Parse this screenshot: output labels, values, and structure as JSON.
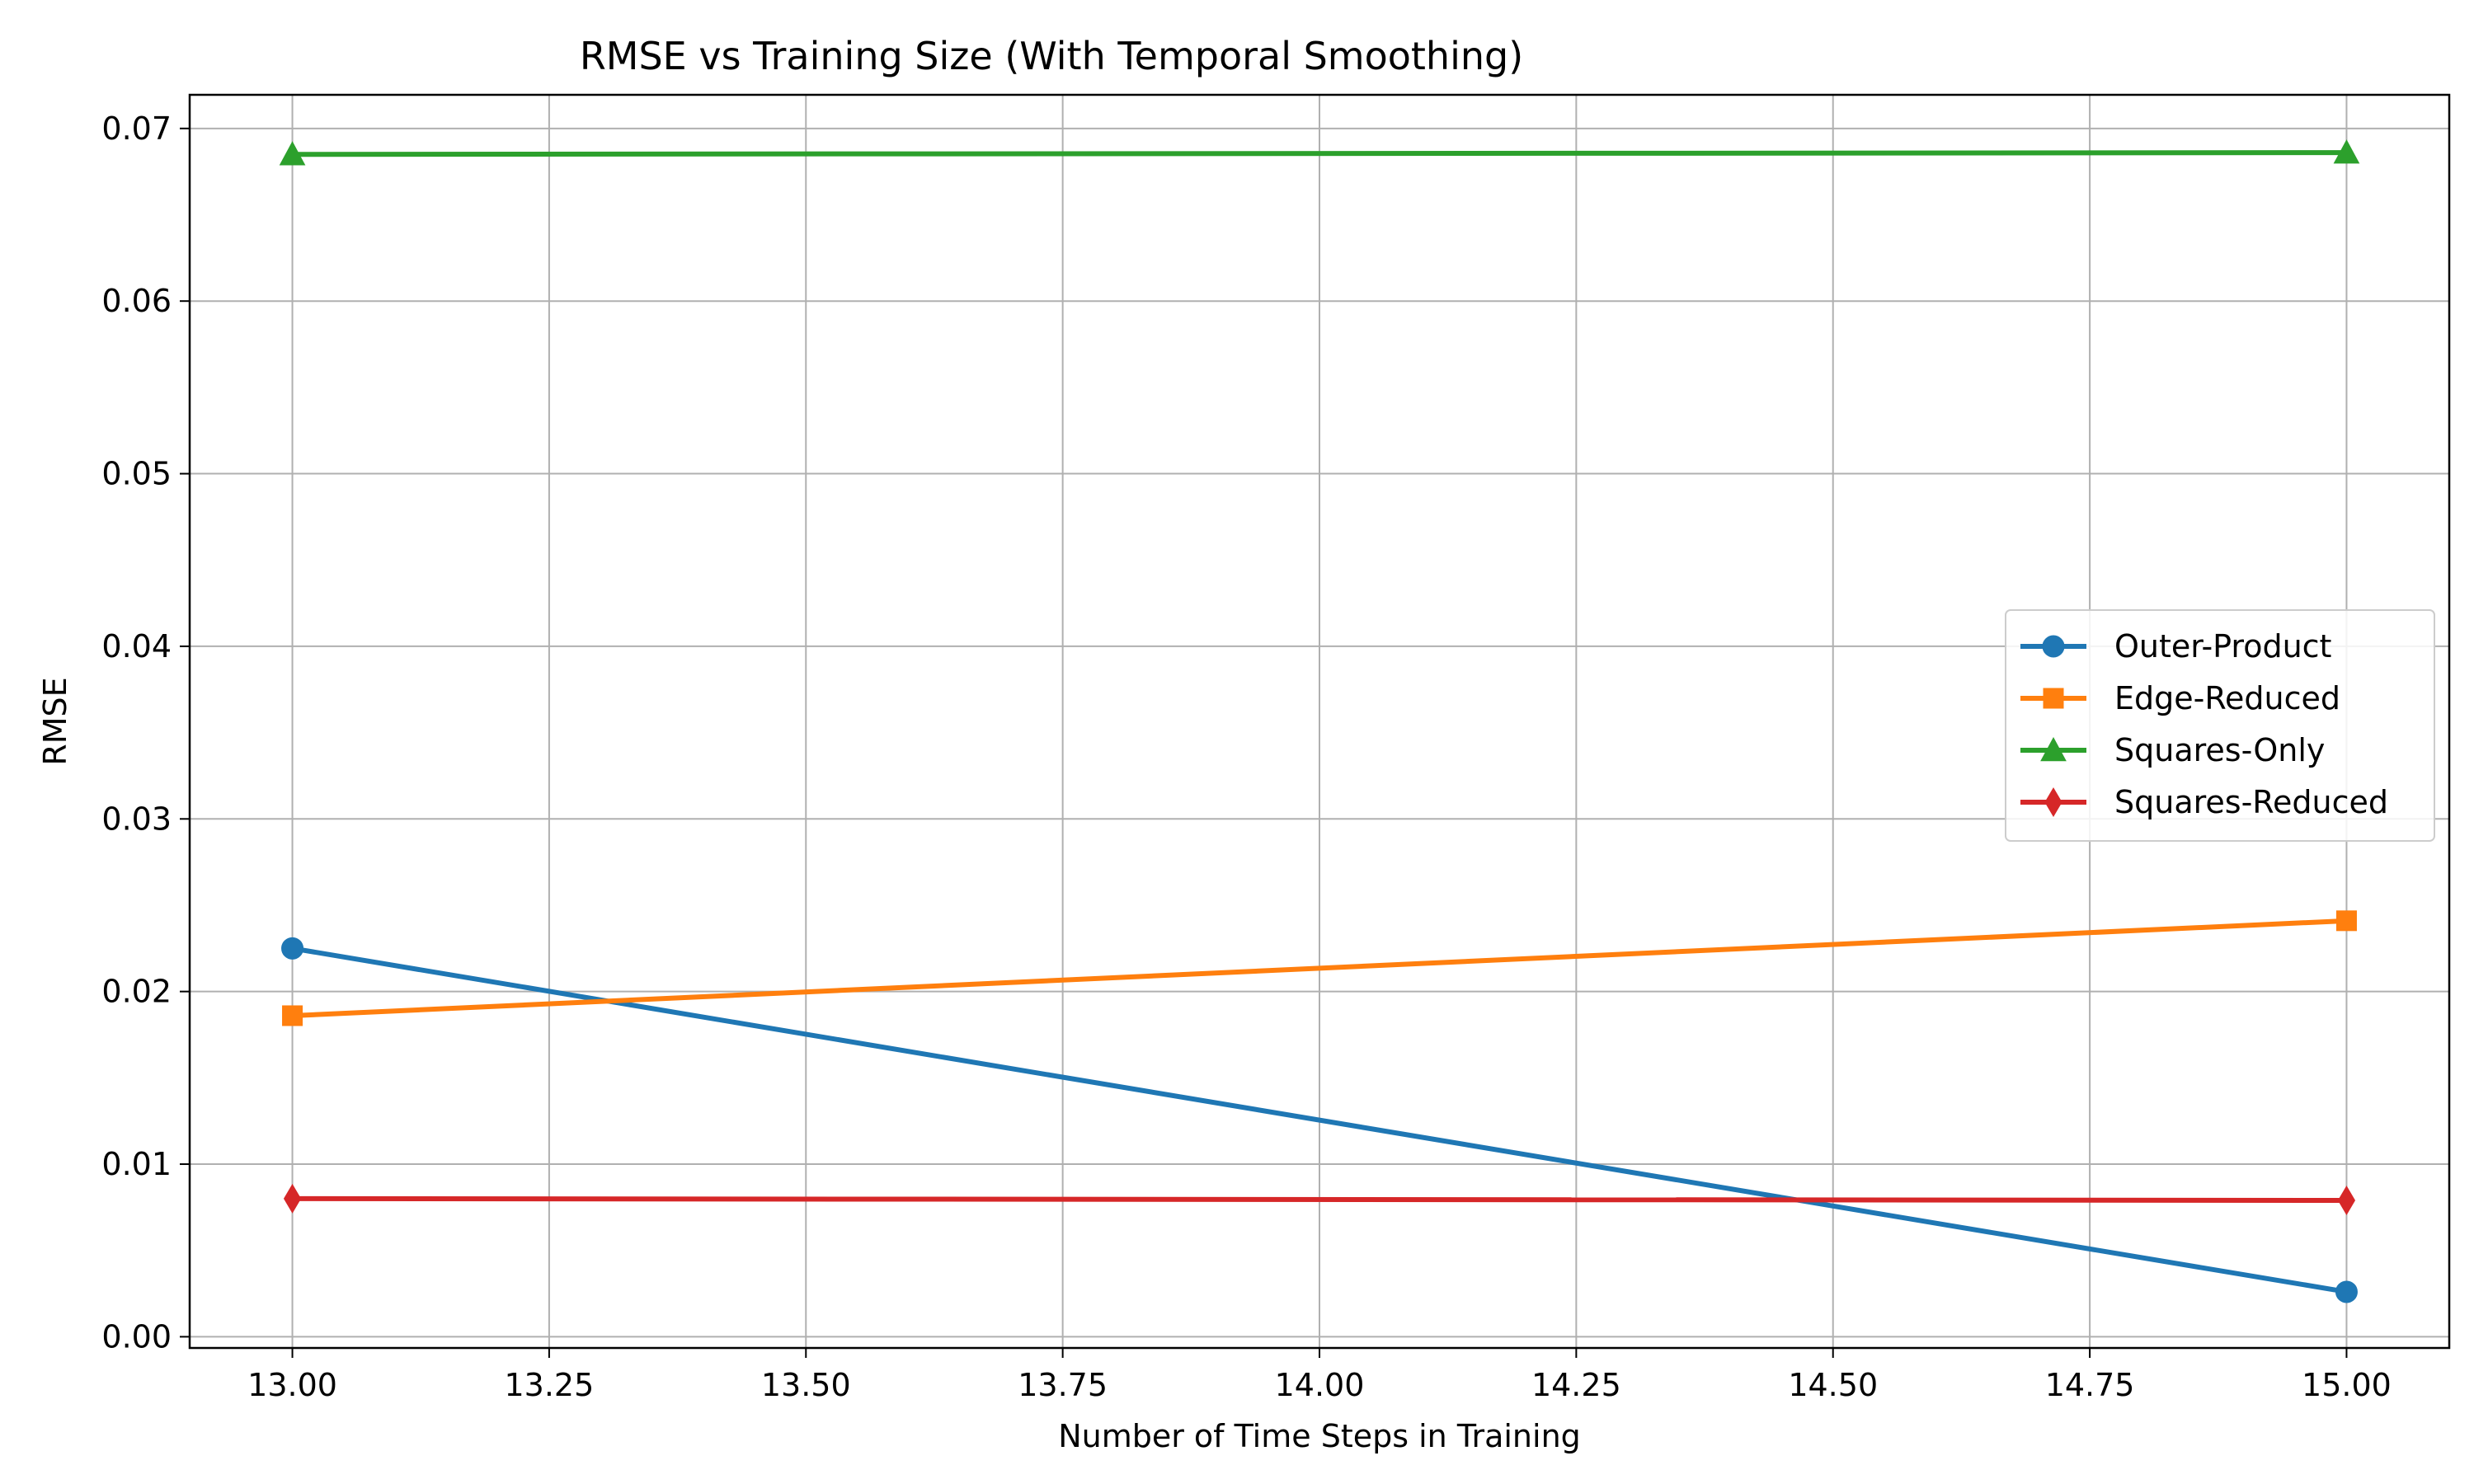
{
  "chart_data": {
    "type": "line",
    "title": "RMSE vs Training Size (With Temporal Smoothing)",
    "xlabel": "Number of Time Steps in Training",
    "ylabel": "RMSE",
    "x": [
      13,
      15
    ],
    "xlim": [
      12.9,
      15.1
    ],
    "ylim": [
      -0.00065,
      0.07195
    ],
    "xticks": [
      13.0,
      13.25,
      13.5,
      13.75,
      14.0,
      14.25,
      14.5,
      14.75,
      15.0
    ],
    "xtick_labels": [
      "13.00",
      "13.25",
      "13.50",
      "13.75",
      "14.00",
      "14.25",
      "14.50",
      "14.75",
      "15.00"
    ],
    "yticks": [
      0.0,
      0.01,
      0.02,
      0.03,
      0.04,
      0.05,
      0.06,
      0.07
    ],
    "ytick_labels": [
      "0.00",
      "0.01",
      "0.02",
      "0.03",
      "0.04",
      "0.05",
      "0.06",
      "0.07"
    ],
    "grid": true,
    "legend_position": "center-right",
    "series": [
      {
        "name": "Outer-Product",
        "values": [
          0.0225,
          0.0026
        ],
        "color": "#1f77b4",
        "marker": "circle"
      },
      {
        "name": "Edge-Reduced",
        "values": [
          0.0186,
          0.0241
        ],
        "color": "#ff7f0e",
        "marker": "square"
      },
      {
        "name": "Squares-Only",
        "values": [
          0.0685,
          0.0686
        ],
        "color": "#2ca02c",
        "marker": "triangle"
      },
      {
        "name": "Squares-Reduced",
        "values": [
          0.008,
          0.0079
        ],
        "color": "#d62728",
        "marker": "diamond"
      }
    ]
  }
}
